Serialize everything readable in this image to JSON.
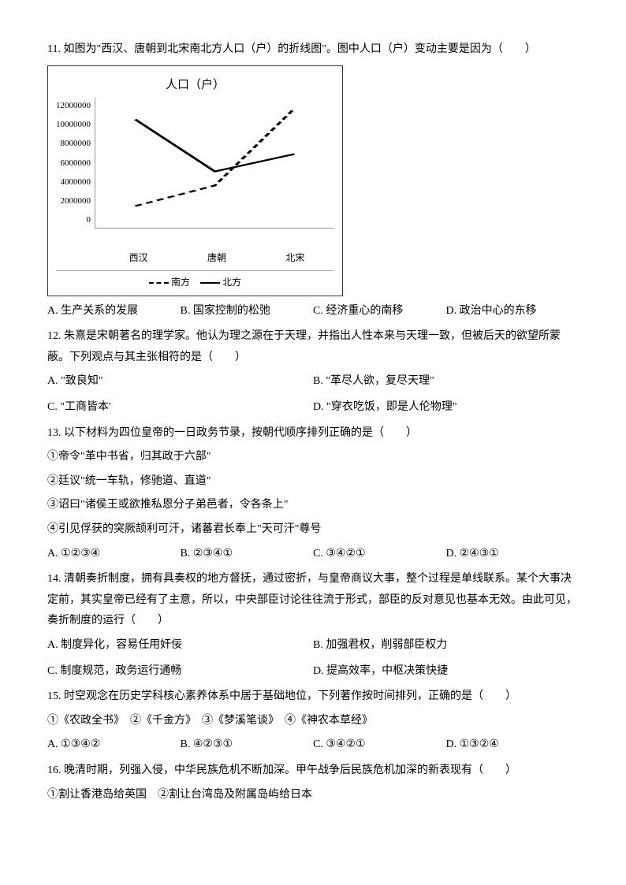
{
  "q11": {
    "text": "11. 如图为\"西汉、唐朝到北宋南北方人口（户）的折线图\"。图中人口（户）变动主要是因为（　　）",
    "chart": {
      "title": "人口（户）",
      "y_ticks": [
        "12000000",
        "10000000",
        "8000000",
        "6000000",
        "4000000",
        "2000000",
        "0"
      ],
      "x_labels": [
        "西汉",
        "唐朝",
        "北宋"
      ],
      "legend_south": "南方",
      "legend_north": "北方",
      "south_points": [
        [
          16.7,
          83.3
        ],
        [
          50,
          67.5
        ],
        [
          83.3,
          8.3
        ]
      ],
      "north_points": [
        [
          16.7,
          16.7
        ],
        [
          50,
          56.7
        ],
        [
          83.3,
          43.3
        ]
      ],
      "colors": {
        "line": "#000000",
        "border": "#333333"
      }
    },
    "opts": {
      "a": "A. 生产关系的发展",
      "b": "B. 国家控制的松弛",
      "c": "C. 经济重心的南移",
      "d": "D. 政治中心的东移"
    }
  },
  "q12": {
    "text": "12. 朱熹是宋朝著名的理学家。他认为理之源在于天理，并指出人性本来与天理一致，但被后天的欲望所蒙蔽。下列观点与其主张相符的是（　　）",
    "opts": {
      "a": "A. \"致良知\"",
      "b": "B. \"革尽人欲，复尽天理\"",
      "c": "C. \"工商皆本'",
      "d": "D. \"穿衣吃饭，即是人伦物理\""
    }
  },
  "q13": {
    "text": "13. 以下材料为四位皇帝的一日政务节录，按朝代顺序排列正确的是（　　）",
    "items": [
      "①帝令\"革中书省，归其政于六部\"",
      "②廷议\"统一车轨，修驰道、直道\"",
      "③诏曰\"诸侯王或欲推私恩分子弟邑者，令各条上\"",
      "④引见俘获的突厥颉利可汗，诸蕃君长奉上\"天可汗\"尊号"
    ],
    "opts": {
      "a": "A. ①②③④",
      "b": "B. ②③④①",
      "c": "C. ③④②①",
      "d": "D. ②④③①"
    }
  },
  "q14": {
    "text": "14. 清朝奏折制度，拥有具奏权的地方督抚，通过密折，与皇帝商议大事，整个过程是单线联系。某个大事决定前，其实皇帝已经有了主意，所以，中央部臣讨论往往流于形式，部臣的反对意见也基本无效。由此可见，奏折制度的运行（　　）",
    "opts": {
      "a": "A. 制度异化，容易任用奸佞",
      "b": "B. 加强君权，削弱部臣权力",
      "c": "C. 制度规范，政务运行通畅",
      "d": "D. 提高效率，中枢决策快捷"
    }
  },
  "q15": {
    "text": "15. 时空观念在历史学科核心素养体系中居于基础地位，下列著作按时间排列，正确的是（　　）",
    "items_line": "①《农政全书》　②《千金方》　③《梦溪笔谈》　④《神农本草经》",
    "opts": {
      "a": "A. ①③④②",
      "b": "B. ④②③①",
      "c": "C. ③④②①",
      "d": "D. ①③②④"
    }
  },
  "q16": {
    "text": "16. 晚清时期，列强入侵，中华民族危机不断加深。甲午战争后民族危机加深的新表现有（　　）",
    "items_line": "①割让香港岛给英国　②割让台湾岛及附属岛屿给日本"
  }
}
